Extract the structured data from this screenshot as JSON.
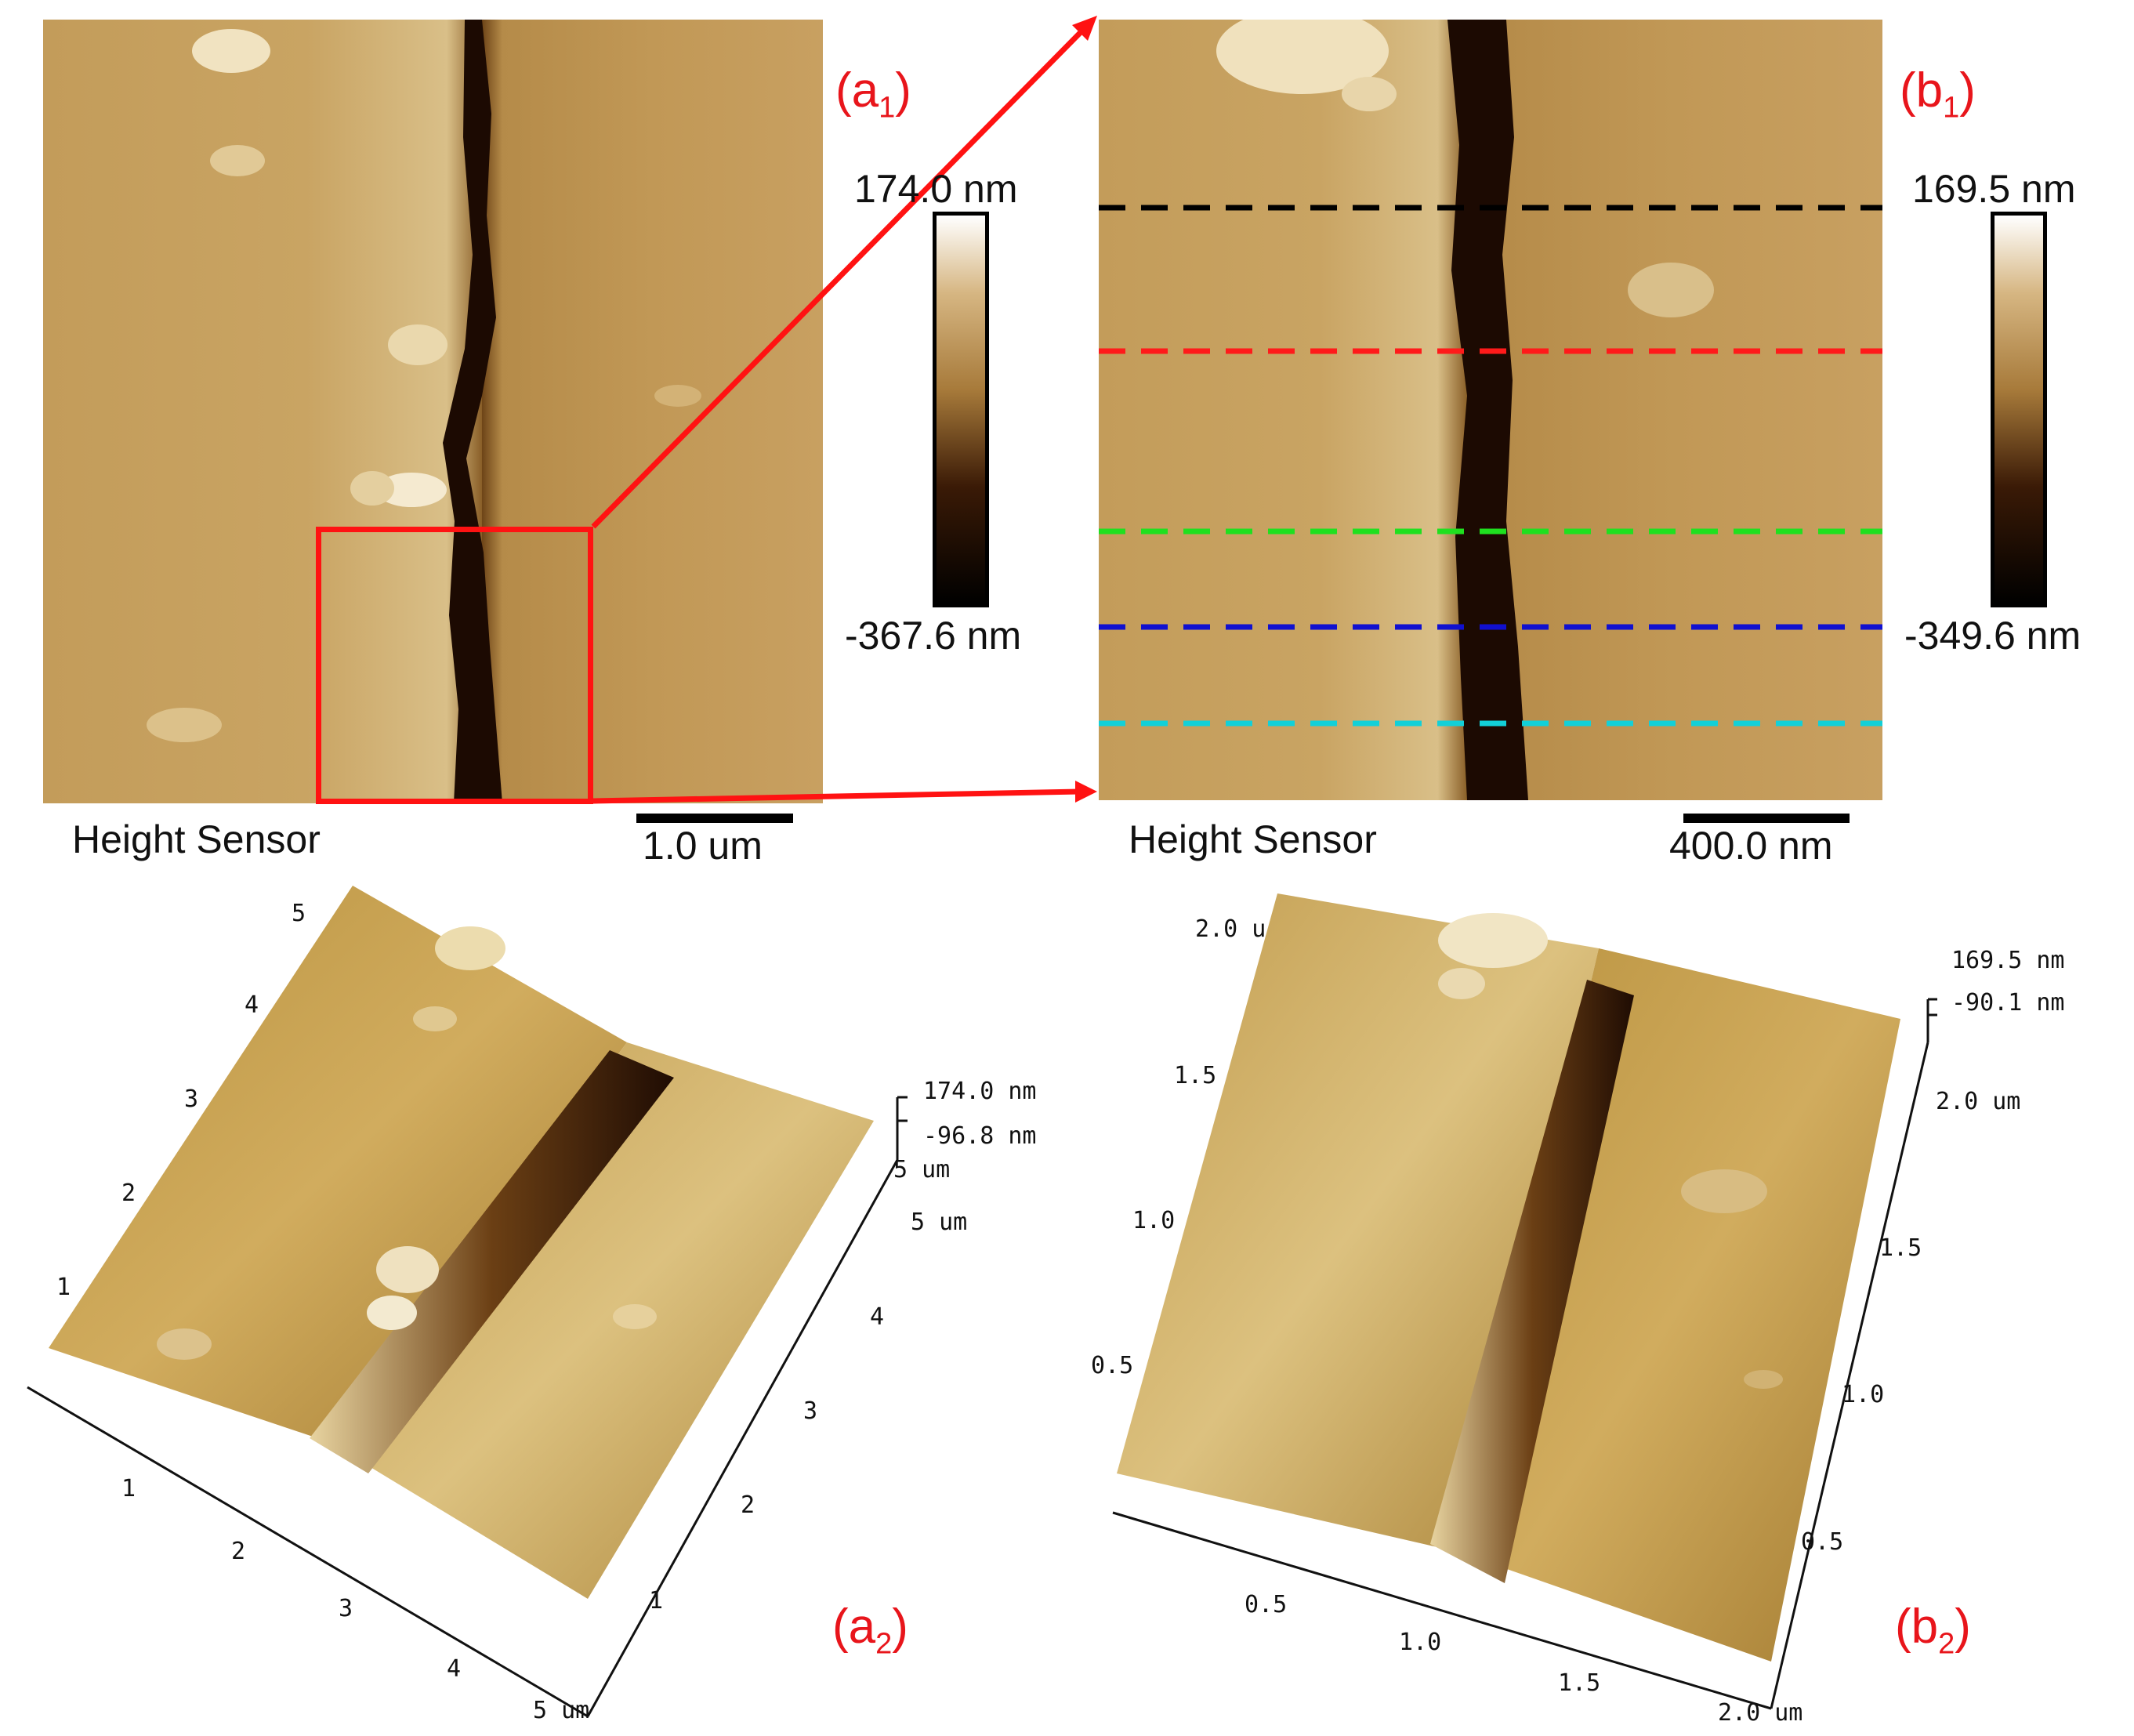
{
  "panels": {
    "a1": {
      "label_main": "(a",
      "label_sub": "1",
      "label_end": ")",
      "colorbar_max": "174.0 nm",
      "colorbar_min": "-367.6 nm",
      "sensor_label": "Height Sensor",
      "scale_label": "1.0 um"
    },
    "b1": {
      "label_main": "(b",
      "label_sub": "1",
      "label_end": ")",
      "colorbar_max": "169.5 nm",
      "colorbar_min": "-349.6 nm",
      "sensor_label": "Height Sensor",
      "scale_label": "400.0 nm",
      "profile_line_colors": [
        "#000000",
        "#ff1a1a",
        "#1fe01f",
        "#1010d0",
        "#12d0d8"
      ]
    },
    "a2": {
      "label_main": "(a",
      "label_sub": "2",
      "label_end": ")",
      "z_max": "174.0 nm",
      "z_min": "-96.8 nm",
      "z_axis_unit_top": "5 um",
      "corner_unit": "5 um",
      "left_axis_ticks": [
        "1",
        "2",
        "3",
        "4",
        "5"
      ],
      "front_axis_ticks": [
        "1",
        "2",
        "3",
        "4"
      ],
      "front_axis_end": "5 um",
      "right_axis_ticks": [
        "1",
        "2",
        "3",
        "4"
      ]
    },
    "b2": {
      "label_main": "(b",
      "label_sub": "2",
      "label_end": ")",
      "z_max": "169.5 nm",
      "z_min": "-90.1 nm",
      "corner_unit": "2.0 um",
      "left_axis_ticks": [
        "0.5",
        "1.0",
        "1.5",
        "2.0 u"
      ],
      "front_axis_ticks": [
        "0.5",
        "1.0",
        "1.5"
      ],
      "front_axis_end": "2.0 um",
      "right_axis_ticks": [
        "0.5",
        "1.0",
        "1.5"
      ]
    }
  },
  "colors": {
    "label_red": "#e8151b",
    "surface_light": "#e9d3a3",
    "surface_mid": "#c39a52",
    "surface_dark": "#2a1306"
  }
}
